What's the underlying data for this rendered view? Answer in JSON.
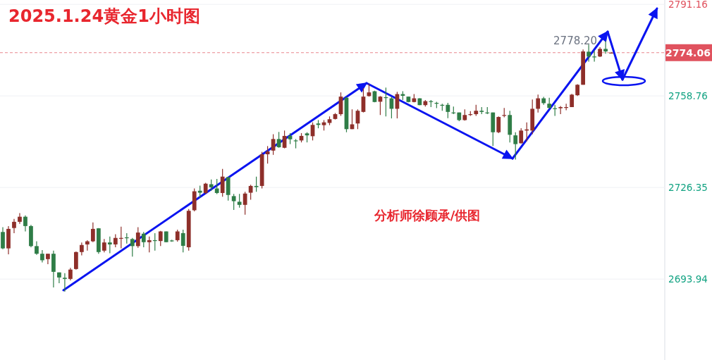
{
  "chart_data": {
    "type": "candlestick",
    "title": "2025.1.24黄金1小时图",
    "annotations": [
      "2778.20",
      "分析师徐顾承/供图"
    ],
    "categories": [
      null,
      null,
      null,
      null,
      null,
      null,
      null,
      null,
      null,
      null,
      null,
      null,
      null,
      null,
      null,
      null,
      null,
      null,
      null,
      null,
      null,
      null,
      null,
      null,
      null,
      null,
      null,
      null,
      null,
      null,
      null,
      null,
      null,
      null,
      null,
      null,
      null,
      null,
      null,
      null,
      null,
      null,
      null,
      null,
      null,
      null,
      null,
      null,
      null,
      null,
      null,
      null,
      null,
      null,
      null,
      null,
      null,
      null,
      null,
      null,
      null,
      null,
      null,
      null,
      null,
      null,
      null,
      null,
      null,
      null,
      null,
      null,
      null,
      null,
      null,
      null,
      null,
      null,
      null,
      null,
      null,
      null,
      null,
      null,
      null,
      null,
      null,
      null,
      null,
      null,
      null,
      null,
      null,
      null,
      null,
      null,
      null,
      null,
      null,
      null,
      null,
      null,
      null,
      null,
      null,
      null,
      null,
      null,
      null,
      null,
      null,
      null,
      null,
      null,
      null,
      null,
      null,
      null
    ],
    "ohlc": [
      [
        2710.6,
        2712.3,
        2704.5,
        2704.8
      ],
      [
        2704.8,
        2712.7,
        2702.7,
        2711.7
      ],
      [
        2712.0,
        2715.2,
        2710.2,
        2714.2
      ],
      [
        2714.2,
        2717.3,
        2713.5,
        2716.0
      ],
      [
        2716.0,
        2716.5,
        2710.8,
        2712.7
      ],
      [
        2712.7,
        2713.1,
        2705.2,
        2705.6
      ],
      [
        2705.6,
        2707.3,
        2702.5,
        2702.9
      ],
      [
        2702.9,
        2704.2,
        2699.8,
        2700.6
      ],
      [
        2701.0,
        2702.9,
        2699.2,
        2702.9
      ],
      [
        2702.9,
        2704.0,
        2691.0,
        2696.5
      ],
      [
        2696.3,
        2696.3,
        2692.5,
        2694.5
      ],
      [
        2694.4,
        2696.0,
        2689.5,
        2694.0
      ],
      [
        2694.0,
        2697.9,
        2693.5,
        2697.3
      ],
      [
        2697.5,
        2703.7,
        2697.3,
        2703.5
      ],
      [
        2703.5,
        2706.9,
        2702.3,
        2706.0
      ],
      [
        2706.2,
        2707.7,
        2704.0,
        2707.3
      ],
      [
        2707.3,
        2714.0,
        2707.0,
        2711.7
      ],
      [
        2711.9,
        2712.0,
        2702.9,
        2703.5
      ],
      [
        2704.0,
        2708.1,
        2703.4,
        2706.9
      ],
      [
        2706.9,
        2709.0,
        2703.1,
        2706.2
      ],
      [
        2706.2,
        2709.8,
        2705.2,
        2708.5
      ],
      [
        2708.3,
        2712.5,
        2704.8,
        2708.5
      ],
      [
        2708.7,
        2710.2,
        2706.5,
        2708.4
      ],
      [
        2708.1,
        2708.5,
        2701.9,
        2705.6
      ],
      [
        2705.6,
        2712.3,
        2705.0,
        2710.4
      ],
      [
        2710.0,
        2710.6,
        2705.2,
        2707.0
      ],
      [
        2707.0,
        2709.0,
        2703.4,
        2707.7
      ],
      [
        2707.7,
        2710.2,
        2704.0,
        2707.4
      ],
      [
        2707.4,
        2711.0,
        2705.6,
        2710.8
      ],
      [
        2710.8,
        2710.8,
        2707.0,
        2707.0
      ],
      [
        2707.6,
        2707.9,
        2707.1,
        2707.3
      ],
      [
        2707.7,
        2711.4,
        2707.2,
        2710.8
      ],
      [
        2710.2,
        2711.4,
        2703.4,
        2705.7
      ],
      [
        2705.2,
        2718.7,
        2704.0,
        2718.1
      ],
      [
        2718.3,
        2726.0,
        2717.9,
        2725.0
      ],
      [
        2725.2,
        2727.0,
        2722.7,
        2724.5
      ],
      [
        2724.4,
        2728.0,
        2724.0,
        2727.7
      ],
      [
        2727.5,
        2729.2,
        2725.2,
        2726.4
      ],
      [
        2726.0,
        2729.4,
        2724.0,
        2724.4
      ],
      [
        2724.4,
        2732.9,
        2723.1,
        2730.2
      ],
      [
        2730.0,
        2730.0,
        2721.7,
        2723.7
      ],
      [
        2723.3,
        2724.1,
        2718.4,
        2721.5
      ],
      [
        2721.3,
        2724.1,
        2719.2,
        2720.2
      ],
      [
        2720.2,
        2724.8,
        2716.7,
        2724.2
      ],
      [
        2724.5,
        2727.3,
        2722.0,
        2726.9
      ],
      [
        2726.9,
        2730.2,
        2724.8,
        2726.5
      ],
      [
        2726.9,
        2739.0,
        2726.0,
        2738.1
      ],
      [
        2738.1,
        2741.0,
        2734.8,
        2739.1
      ],
      [
        2739.4,
        2745.2,
        2737.9,
        2743.5
      ],
      [
        2743.5,
        2746.0,
        2740.4,
        2740.6
      ],
      [
        2740.4,
        2746.5,
        2740.2,
        2744.6
      ],
      [
        2744.6,
        2745.6,
        2741.7,
        2743.4
      ],
      [
        2743.0,
        2743.5,
        2740.2,
        2742.7
      ],
      [
        2743.0,
        2745.6,
        2742.3,
        2744.6
      ],
      [
        2745.5,
        2745.9,
        2742.3,
        2744.8
      ],
      [
        2744.5,
        2749.4,
        2743.0,
        2748.5
      ],
      [
        2749.0,
        2750.2,
        2747.3,
        2748.5
      ],
      [
        2748.4,
        2750.2,
        2746.5,
        2749.4
      ],
      [
        2749.2,
        2751.5,
        2748.4,
        2750.5
      ],
      [
        2750.6,
        2752.7,
        2750.4,
        2752.3
      ],
      [
        2752.3,
        2760.0,
        2751.7,
        2758.5
      ],
      [
        2758.1,
        2758.5,
        2745.9,
        2747.0
      ],
      [
        2747.0,
        2754.0,
        2747.0,
        2748.7
      ],
      [
        2749.0,
        2754.0,
        2747.0,
        2753.5
      ],
      [
        2753.1,
        2761.5,
        2752.9,
        2758.5
      ],
      [
        2758.7,
        2763.1,
        2758.5,
        2760.0
      ],
      [
        2760.4,
        2760.6,
        2756.5,
        2756.6
      ],
      [
        2756.7,
        2758.7,
        2752.0,
        2758.5
      ],
      [
        2758.3,
        2761.7,
        2751.5,
        2758.0
      ],
      [
        2757.9,
        2758.5,
        2750.8,
        2754.2
      ],
      [
        2754.2,
        2760.2,
        2750.8,
        2759.4
      ],
      [
        2759.4,
        2760.4,
        2757.3,
        2758.8
      ],
      [
        2758.5,
        2758.5,
        2756.5,
        2756.6
      ],
      [
        2756.6,
        2759.4,
        2756.5,
        2757.9
      ],
      [
        2757.9,
        2757.9,
        2755.5,
        2755.5
      ],
      [
        2755.5,
        2757.3,
        2755.0,
        2756.9
      ],
      [
        2756.9,
        2757.3,
        2754.8,
        2756.6
      ],
      [
        2756.3,
        2756.7,
        2754.4,
        2756.0
      ],
      [
        2755.6,
        2756.0,
        2753.5,
        2755.5
      ],
      [
        2755.6,
        2756.3,
        2750.9,
        2753.1
      ],
      [
        2752.9,
        2755.0,
        2752.3,
        2752.6
      ],
      [
        2752.9,
        2752.9,
        2749.8,
        2750.2
      ],
      [
        2750.2,
        2754.0,
        2750.0,
        2752.0
      ],
      [
        2752.1,
        2753.4,
        2751.7,
        2752.3
      ],
      [
        2752.3,
        2755.6,
        2751.7,
        2753.5
      ],
      [
        2753.5,
        2754.8,
        2752.3,
        2753.1
      ],
      [
        2752.9,
        2754.8,
        2752.3,
        2752.6
      ],
      [
        2752.9,
        2752.9,
        2741.0,
        2745.9
      ],
      [
        2745.9,
        2751.5,
        2745.6,
        2751.3
      ],
      [
        2751.8,
        2754.5,
        2751.2,
        2752.0
      ],
      [
        2752.0,
        2753.5,
        2742.3,
        2745.0
      ],
      [
        2744.8,
        2745.9,
        2736.2,
        2741.7
      ],
      [
        2742.0,
        2747.3,
        2741.9,
        2746.5
      ],
      [
        2746.5,
        2749.4,
        2742.7,
        2746.9
      ],
      [
        2746.5,
        2757.5,
        2745.2,
        2754.2
      ],
      [
        2754.2,
        2759.2,
        2752.9,
        2757.9
      ],
      [
        2757.9,
        2758.4,
        2755.6,
        2756.2
      ],
      [
        2756.0,
        2758.1,
        2754.4,
        2754.5
      ],
      [
        2754.4,
        2755.6,
        2751.7,
        2754.1
      ],
      [
        2754.4,
        2755.2,
        2752.3,
        2754.8
      ],
      [
        2754.5,
        2756.0,
        2753.7,
        2754.8
      ],
      [
        2754.8,
        2759.5,
        2754.8,
        2759.2
      ],
      [
        2759.0,
        2762.9,
        2758.7,
        2762.7
      ],
      [
        2762.7,
        2775.2,
        2762.7,
        2774.5
      ],
      [
        2774.4,
        2776.9,
        2770.9,
        2772.7
      ],
      [
        2772.7,
        2774.8,
        2770.9,
        2772.4
      ],
      [
        2772.7,
        2776.0,
        2772.5,
        2775.4
      ],
      [
        2775.4,
        2778.2,
        2773.7,
        2774.5
      ],
      [
        2773.9,
        2774.3,
        2773.8,
        2774.06
      ],
      null,
      null,
      null,
      null,
      null,
      null,
      null,
      null,
      null
    ],
    "ylim": [
      2665.3,
      2792.7
    ],
    "yticks": [
      2693.94,
      2726.35,
      2758.76,
      2791.16
    ],
    "ref_lines": [
      {
        "axis": "y",
        "value": 2774.06,
        "label": "2774.06",
        "color": "#e0525e",
        "line_style": "dashed"
      }
    ],
    "grid": "y",
    "tick_labels": "y"
  }
}
